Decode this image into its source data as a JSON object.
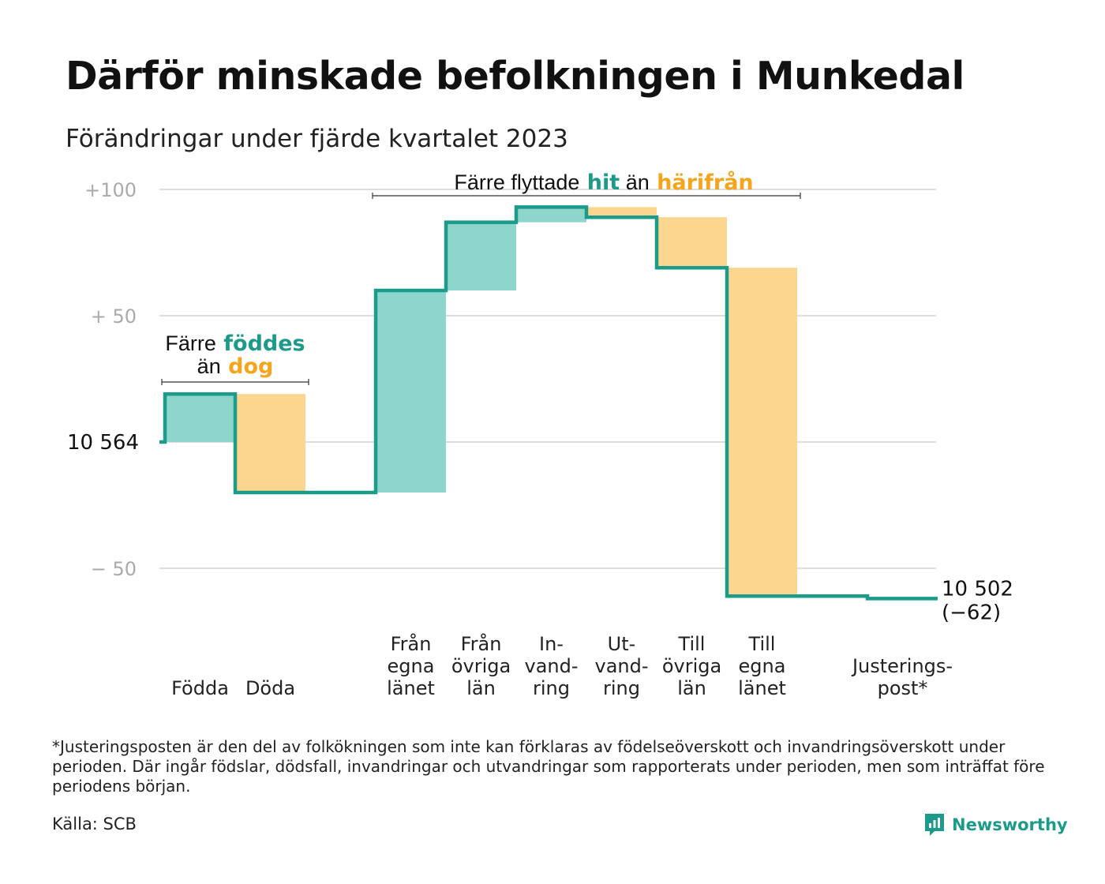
{
  "title": "Därför minskade befolkningen i Munkedal",
  "subtitle": "Förändringar under fjärde kvartalet 2023",
  "colors": {
    "teal_line": "#1c9a8a",
    "teal_fill": "#8ed6cb",
    "orange_fill": "#fcd68f",
    "orange_text": "#f4a51c",
    "grid": "#dddddd",
    "tick": "#aaaaaa"
  },
  "chart_data": {
    "type": "waterfall",
    "start_value": 10564,
    "end_value": 10502,
    "y_ticks": [
      {
        "value": 100,
        "label": "+100"
      },
      {
        "value": 50,
        "label": "+  50"
      },
      {
        "value": 0,
        "label": "10  564"
      },
      {
        "value": -50,
        "label": "−  50"
      }
    ],
    "ylim": [
      -75,
      110
    ],
    "grid": true,
    "steps": [
      {
        "label_lines": [
          "Födda"
        ],
        "change": 19,
        "kind": "in"
      },
      {
        "label_lines": [
          "Döda"
        ],
        "change": -39,
        "kind": "out"
      },
      {
        "label_lines": [],
        "change": 0,
        "kind": "gap"
      },
      {
        "label_lines": [
          "Från",
          "egna",
          "länet"
        ],
        "change": 80,
        "kind": "in"
      },
      {
        "label_lines": [
          "Från",
          "övriga",
          "län"
        ],
        "change": 27,
        "kind": "in"
      },
      {
        "label_lines": [
          "In-",
          "vand-",
          "ring"
        ],
        "change": 6,
        "kind": "in"
      },
      {
        "label_lines": [
          "Ut-",
          "vand-",
          "ring"
        ],
        "change": -4,
        "kind": "out"
      },
      {
        "label_lines": [
          "Till",
          "övriga",
          "län"
        ],
        "change": -20,
        "kind": "out"
      },
      {
        "label_lines": [
          "Till",
          "egna",
          "länet"
        ],
        "change": -130,
        "kind": "out"
      },
      {
        "label_lines": [],
        "change": 0,
        "kind": "gap"
      },
      {
        "label_lines": [
          "Justerings-",
          "post*"
        ],
        "change": -1,
        "kind": "adjust"
      }
    ],
    "end_label": [
      "10 502",
      "(−62)"
    ],
    "annotations": [
      {
        "parts": [
          {
            "text": "Färre",
            "style": "plain"
          },
          {
            "text": "föddes",
            "style": "teal"
          }
        ],
        "parts2": [
          {
            "text": "än",
            "style": "plain"
          },
          {
            "text": "dog",
            "style": "orange"
          }
        ],
        "span_steps": [
          0,
          1
        ]
      },
      {
        "parts": [
          {
            "text": "Färre flyttade",
            "style": "plain"
          },
          {
            "text": "hit",
            "style": "teal"
          },
          {
            "text": "än",
            "style": "plain"
          },
          {
            "text": "härifrån",
            "style": "orange"
          }
        ],
        "span_steps": [
          3,
          8
        ]
      }
    ]
  },
  "footnote": "*Justeringsposten är den del av folkökningen som inte kan förklaras av födelseöverskott och invandringsöverskott under perioden. Där ingår födslar, dödsfall, invandringar och utvandringar som rapporterats under perioden, men som inträffat före periodens början.",
  "source": "Källa: SCB",
  "brand": {
    "name": "Newsworthy",
    "icon": "newsworthy-logo-icon"
  }
}
